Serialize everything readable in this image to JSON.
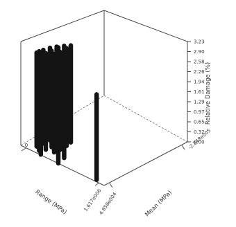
{
  "chart_data": {
    "type": "bar3d",
    "z_axis": {
      "label": "Relative Damage (%)",
      "ticks": [
        "0.00",
        "0.32",
        "0.65",
        "0.97",
        "1.29",
        "1.61",
        "1.94",
        "2.26",
        "2.58",
        "2.90",
        "3.23"
      ],
      "range": [
        0,
        3.23
      ]
    },
    "x_axis": {
      "label": "Range (MPa)",
      "ticks": [
        "0",
        "1.617e006"
      ]
    },
    "y_axis": {
      "label": "Mean (MPa)",
      "ticks": [
        "4.858e004",
        "-2.848e005"
      ]
    },
    "bars": [
      {
        "x": 0.72,
        "y": 0.15,
        "z": 2.95
      },
      {
        "x": 0.78,
        "y": 0.13,
        "z": 2.98
      },
      {
        "x": 0.85,
        "y": 0.12,
        "z": 3.01
      },
      {
        "x": 0.92,
        "y": 0.11,
        "z": 3.02
      },
      {
        "x": 0.7,
        "y": 0.22,
        "z": 3.05
      },
      {
        "x": 0.76,
        "y": 0.21,
        "z": 3.08
      },
      {
        "x": 0.84,
        "y": 0.21,
        "z": 3.1
      },
      {
        "x": 0.9,
        "y": 0.2,
        "z": 3.1
      },
      {
        "x": 0.68,
        "y": 0.28,
        "z": 3.12
      },
      {
        "x": 0.74,
        "y": 0.29,
        "z": 3.14
      },
      {
        "x": 0.82,
        "y": 0.29,
        "z": 3.15
      },
      {
        "x": 0.88,
        "y": 0.28,
        "z": 3.16
      },
      {
        "x": 0.95,
        "y": 0.17,
        "z": 3.2
      },
      {
        "x": 0.98,
        "y": 0.22,
        "z": 3.22
      },
      {
        "x": 0.88,
        "y": 0.4,
        "z": 2.9
      },
      {
        "x": 0.97,
        "y": 0.42,
        "z": 2.9
      },
      {
        "x": 0.92,
        "y": 0.83,
        "z": 2.75
      }
    ]
  }
}
